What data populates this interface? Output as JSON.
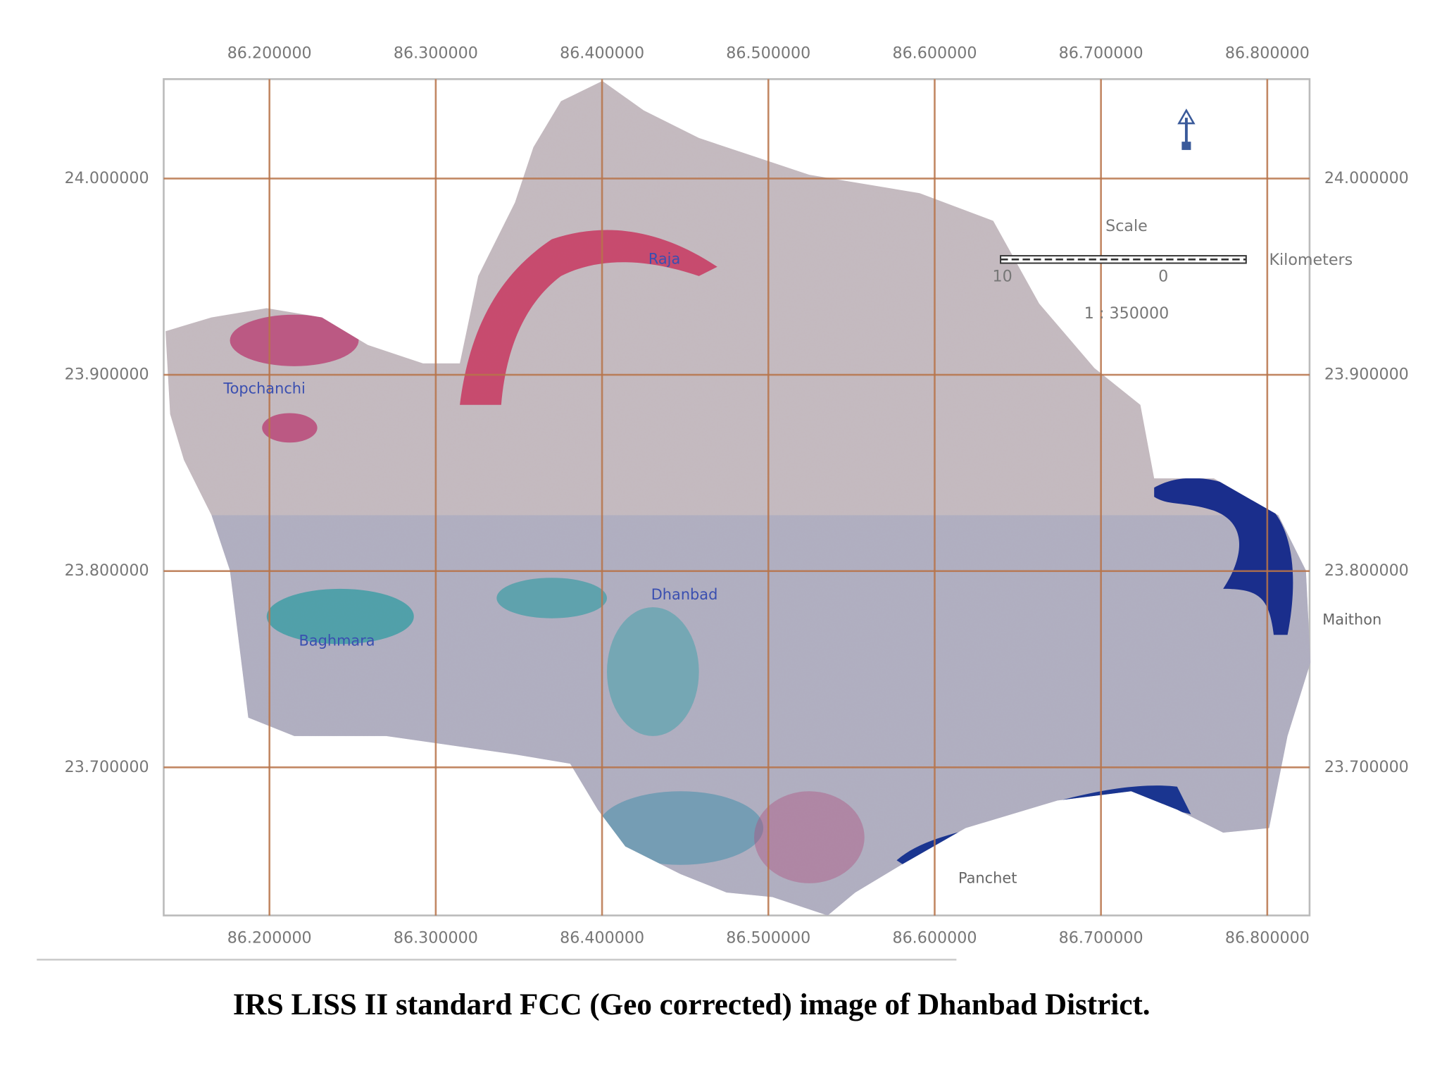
{
  "map": {
    "caption": "IRS LISS II standard FCC (Geo corrected) image of Dhanbad District.",
    "top_ticks": [
      "86.200000",
      "86.300000",
      "86.400000",
      "86.500000",
      "86.600000",
      "86.700000",
      "86.800000"
    ],
    "bottom_ticks": [
      "86.200000",
      "86.300000",
      "86.400000",
      "86.500000",
      "86.600000",
      "86.700000",
      "86.800000"
    ],
    "left_ticks": [
      "24.000000",
      "23.900000",
      "23.800000",
      "23.700000"
    ],
    "right_ticks": [
      "24.000000",
      "23.900000",
      "23.800000",
      "23.700000"
    ],
    "places": [
      "Topchanchi",
      "Raja",
      "Baghmara",
      "Dhanbad",
      "Maithon",
      "Panchet"
    ],
    "scale": {
      "title": "Scale",
      "left": "10",
      "right": "0",
      "unit": "Kilometers",
      "ratio": "1 : 350000"
    }
  }
}
